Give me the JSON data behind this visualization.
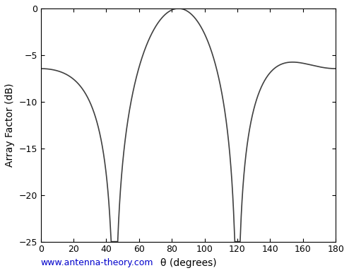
{
  "title": "",
  "xlabel": "θ (degrees)",
  "ylabel": "Array Factor (dB)",
  "xlim": [
    0,
    180
  ],
  "ylim": [
    -25,
    0
  ],
  "xticks": [
    0,
    20,
    40,
    60,
    80,
    100,
    120,
    140,
    160,
    180
  ],
  "yticks": [
    0,
    -5,
    -10,
    -15,
    -20,
    -25
  ],
  "null_angles_deg": [
    45,
    120
  ],
  "d_over_lambda": 0.5,
  "line_color": "#404040",
  "background_color": "#ffffff",
  "watermark": "www.antenna-theory.com",
  "watermark_color": "#0000cc",
  "tick_fontsize": 9,
  "label_fontsize": 10,
  "linewidth": 1.2
}
